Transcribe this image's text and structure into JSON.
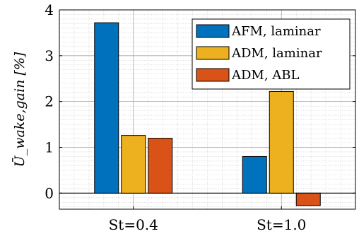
{
  "chart_data": {
    "type": "bar",
    "categories": [
      "St=0.4",
      "St=1.0"
    ],
    "series": [
      {
        "name": "AFM, laminar",
        "values": [
          3.72,
          0.8
        ],
        "color": "#0072BD"
      },
      {
        "name": "ADM, laminar",
        "values": [
          1.26,
          2.22
        ],
        "color": "#EDB120"
      },
      {
        "name": "ADM, ABL",
        "values": [
          1.2,
          -0.27
        ],
        "color": "#D95319"
      }
    ],
    "title": "",
    "xlabel": "",
    "ylabel": "Ū_wake,gain [%]",
    "ylim": [
      -0.35,
      4
    ],
    "yticks": [
      0,
      1,
      2,
      3,
      4
    ],
    "ytick_labels": [
      "0",
      "1",
      "2",
      "3",
      "4"
    ],
    "grid": "major and minor",
    "legend_position": "top-right"
  }
}
